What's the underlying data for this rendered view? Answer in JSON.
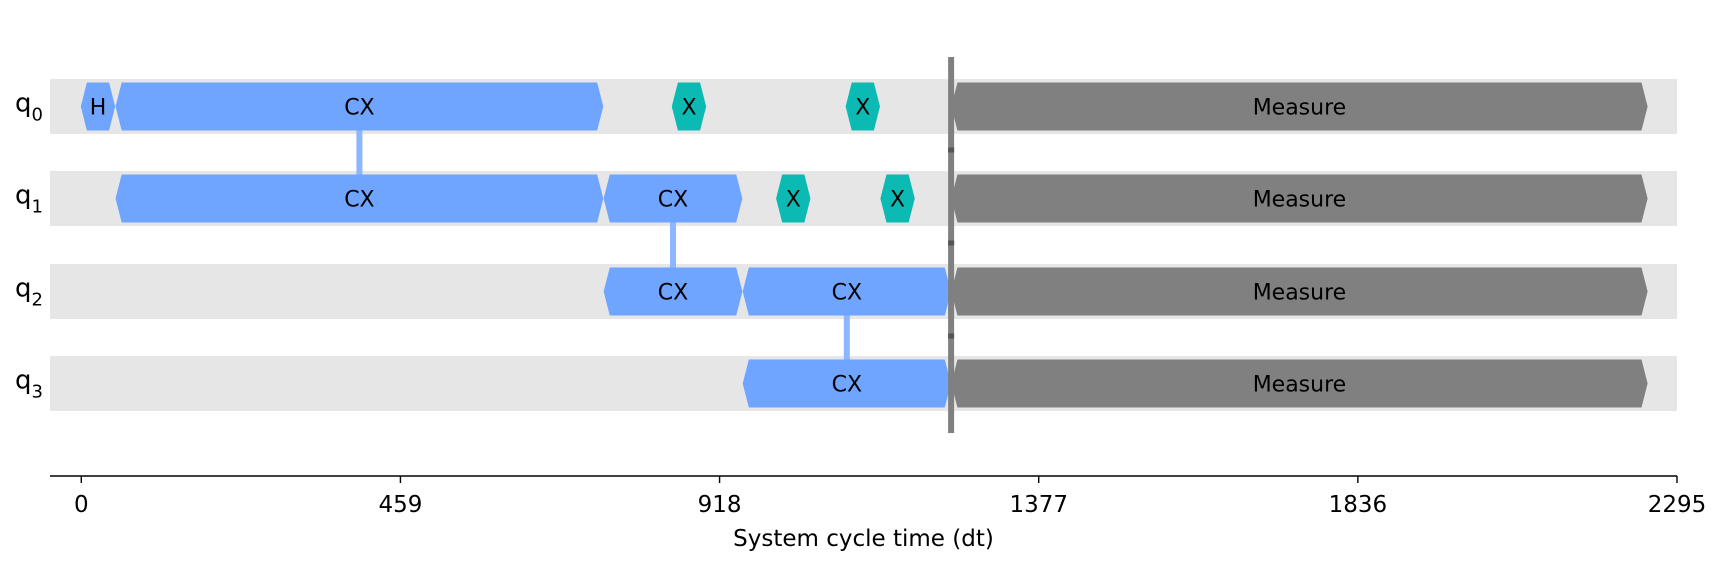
{
  "chart_data": {
    "type": "timeline",
    "xlabel": "System cycle time (dt)",
    "xlim": [
      -45,
      2295
    ],
    "xticks": [
      0,
      459,
      918,
      1377,
      1836,
      2295
    ],
    "qubits": [
      {
        "base": "q",
        "sub": "0"
      },
      {
        "base": "q",
        "sub": "1"
      },
      {
        "base": "q",
        "sub": "2"
      },
      {
        "base": "q",
        "sub": "3"
      }
    ],
    "colors": {
      "row_background": "#e6e6e6",
      "cx": "#6fa4ff",
      "cx_link": "#8cb6ff",
      "x": "#0cbab4",
      "h": "#6fa4ff",
      "measure": "#808080",
      "barrier": "#808080",
      "axis": "#000000"
    },
    "gates": [
      {
        "qubit": 0,
        "name": "H",
        "kind": "h",
        "start": 0,
        "end": 48
      },
      {
        "qubit": 0,
        "name": "CX",
        "kind": "cx",
        "start": 50,
        "end": 750
      },
      {
        "qubit": 1,
        "name": "CX",
        "kind": "cx",
        "start": 50,
        "end": 750
      },
      {
        "qubit": 0,
        "name": "X",
        "kind": "x",
        "start": 850,
        "end": 898
      },
      {
        "qubit": 0,
        "name": "X",
        "kind": "x",
        "start": 1100,
        "end": 1148
      },
      {
        "qubit": 1,
        "name": "CX",
        "kind": "cx",
        "start": 752,
        "end": 950
      },
      {
        "qubit": 2,
        "name": "CX",
        "kind": "cx",
        "start": 752,
        "end": 950
      },
      {
        "qubit": 1,
        "name": "X",
        "kind": "x",
        "start": 1000,
        "end": 1048
      },
      {
        "qubit": 1,
        "name": "X",
        "kind": "x",
        "start": 1150,
        "end": 1198
      },
      {
        "qubit": 2,
        "name": "CX",
        "kind": "cx",
        "start": 952,
        "end": 1250
      },
      {
        "qubit": 3,
        "name": "CX",
        "kind": "cx",
        "start": 952,
        "end": 1250
      },
      {
        "qubit": 0,
        "name": "Measure",
        "kind": "measure",
        "start": 1252,
        "end": 2252
      },
      {
        "qubit": 1,
        "name": "Measure",
        "kind": "measure",
        "start": 1252,
        "end": 2252
      },
      {
        "qubit": 2,
        "name": "Measure",
        "kind": "measure",
        "start": 1252,
        "end": 2252
      },
      {
        "qubit": 3,
        "name": "Measure",
        "kind": "measure",
        "start": 1252,
        "end": 2252
      }
    ],
    "links": [
      {
        "from": 0,
        "to": 1,
        "time": 400
      },
      {
        "from": 1,
        "to": 2,
        "time": 851
      },
      {
        "from": 2,
        "to": 3,
        "time": 1101
      }
    ],
    "barrier": {
      "time": 1251
    }
  }
}
